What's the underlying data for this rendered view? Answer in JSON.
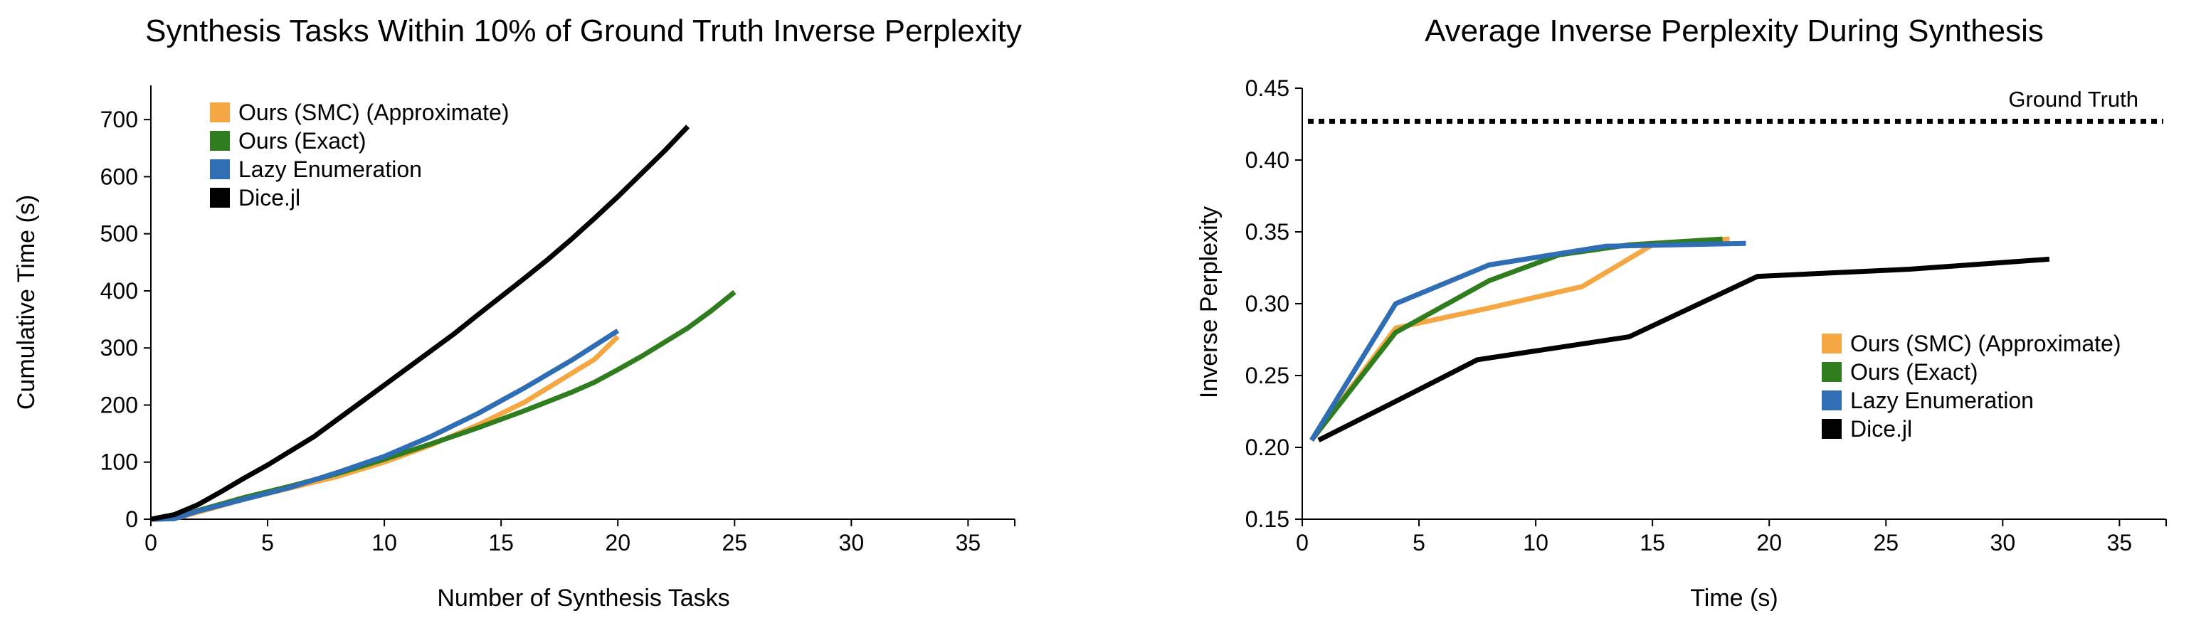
{
  "chart_data": [
    {
      "type": "line",
      "title": "Synthesis Tasks Within 10% of Ground Truth Inverse Perplexity",
      "xlabel": "Number of Synthesis Tasks",
      "ylabel": "Cumulative Time (s)",
      "xlim": [
        0,
        37
      ],
      "ylim": [
        0,
        760
      ],
      "xticks": [
        0,
        5,
        10,
        15,
        20,
        25,
        30,
        35
      ],
      "yticks": [
        0,
        100,
        200,
        300,
        400,
        500,
        600,
        700
      ],
      "grid": false,
      "legend": "top-left",
      "series": [
        {
          "name": "Ours (SMC) (Approximate)",
          "color": "#f4a743",
          "x": [
            0,
            1,
            2,
            4,
            6,
            8,
            10,
            12,
            14,
            16,
            18,
            19,
            19.5,
            20
          ],
          "y": [
            0,
            1,
            12,
            35,
            55,
            75,
            100,
            130,
            165,
            205,
            255,
            280,
            300,
            320
          ]
        },
        {
          "name": "Ours (Exact)",
          "color": "#2f7d1f",
          "x": [
            0,
            1,
            2,
            4,
            6,
            8,
            10,
            12,
            14,
            16,
            18,
            19,
            20,
            21,
            22,
            23,
            24,
            25
          ],
          "y": [
            0,
            1,
            15,
            38,
            58,
            80,
            105,
            132,
            160,
            190,
            222,
            240,
            262,
            285,
            310,
            335,
            365,
            398
          ]
        },
        {
          "name": "Lazy Enumeration",
          "color": "#2f6db5",
          "x": [
            0,
            1,
            2,
            4,
            6,
            8,
            10,
            12,
            14,
            16,
            18,
            20
          ],
          "y": [
            0,
            1,
            14,
            35,
            56,
            82,
            110,
            145,
            185,
            230,
            278,
            330
          ]
        },
        {
          "name": "Dice.jl",
          "color": "#000000",
          "x": [
            0,
            1,
            2,
            3,
            4,
            5,
            6,
            7,
            8,
            9,
            10,
            11,
            12,
            13,
            14,
            15,
            16,
            17,
            18,
            19,
            20,
            21,
            22,
            23
          ],
          "y": [
            0,
            8,
            25,
            48,
            72,
            95,
            120,
            145,
            175,
            205,
            235,
            265,
            295,
            325,
            358,
            390,
            422,
            455,
            490,
            527,
            565,
            605,
            645,
            688
          ]
        }
      ]
    },
    {
      "type": "line",
      "title": "Average Inverse Perplexity During Synthesis",
      "xlabel": "Time (s)",
      "ylabel": "Inverse Perplexity",
      "xlim": [
        0,
        37
      ],
      "ylim": [
        0.15,
        0.45
      ],
      "xticks": [
        0,
        5,
        10,
        15,
        20,
        25,
        30,
        35
      ],
      "yticks": [
        0.15,
        0.2,
        0.25,
        0.3,
        0.35,
        0.4,
        0.45
      ],
      "ytick_labels": [
        "0.15",
        "0.20",
        "0.25",
        "0.30",
        "0.35",
        "0.40",
        "0.45"
      ],
      "grid": false,
      "legend": "center-right",
      "reference_line": {
        "label": "Ground Truth",
        "y": 0.427
      },
      "series": [
        {
          "name": "Ours (SMC) (Approximate)",
          "color": "#f4a743",
          "x": [
            0.4,
            4,
            8,
            12,
            15,
            18.3
          ],
          "y": [
            0.205,
            0.283,
            0.297,
            0.312,
            0.341,
            0.345
          ]
        },
        {
          "name": "Ours (Exact)",
          "color": "#2f7d1f",
          "x": [
            0.4,
            4,
            8,
            11,
            14,
            18
          ],
          "y": [
            0.205,
            0.28,
            0.316,
            0.334,
            0.341,
            0.345
          ]
        },
        {
          "name": "Lazy Enumeration",
          "color": "#2f6db5",
          "x": [
            0.4,
            4,
            8,
            13,
            19
          ],
          "y": [
            0.205,
            0.3,
            0.327,
            0.34,
            0.342
          ]
        },
        {
          "name": "Dice.jl",
          "color": "#000000",
          "x": [
            0.7,
            4,
            7.5,
            14,
            19.5,
            26,
            32
          ],
          "y": [
            0.205,
            0.232,
            0.261,
            0.277,
            0.319,
            0.324,
            0.331
          ]
        }
      ]
    }
  ]
}
